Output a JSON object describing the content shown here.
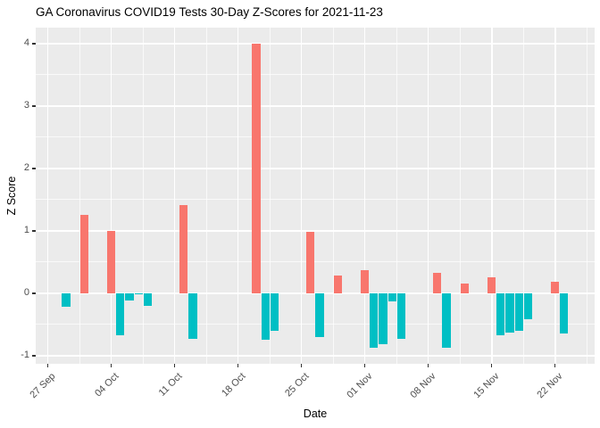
{
  "title": "GA Coronavirus COVID19 Tests 30-Day Z-Scores for 2021-11-23",
  "chart_data": {
    "type": "bar",
    "title": "GA Coronavirus COVID19 Tests 30-Day Z-Scores for 2021-11-23",
    "xlabel": "Date",
    "ylabel": "Z Score",
    "start_date": "2021-09-27",
    "ylim": [
      -1.13,
      4.26
    ],
    "y_ticks": [
      -1,
      0,
      1,
      2,
      3,
      4
    ],
    "y_tick_labels": [
      "-1",
      "0",
      "1",
      "2",
      "3",
      "4"
    ],
    "x_tick_days": [
      0,
      7,
      14,
      21,
      28,
      35,
      42,
      49,
      56
    ],
    "x_tick_labels": [
      "27 Sep",
      "04 Oct",
      "11 Oct",
      "18 Oct",
      "25 Oct",
      "01 Nov",
      "08 Nov",
      "15 Nov",
      "22 Nov"
    ],
    "grid": "on",
    "legend": "none",
    "points": [
      {
        "date": "2021-09-29",
        "z": -0.22
      },
      {
        "date": "2021-10-01",
        "z": 1.26
      },
      {
        "date": "2021-10-04",
        "z": 1.0
      },
      {
        "date": "2021-10-05",
        "z": -0.68
      },
      {
        "date": "2021-10-06",
        "z": -0.12
      },
      {
        "date": "2021-10-07",
        "z": -0.02
      },
      {
        "date": "2021-10-08",
        "z": -0.21
      },
      {
        "date": "2021-10-12",
        "z": 1.41
      },
      {
        "date": "2021-10-13",
        "z": -0.73
      },
      {
        "date": "2021-10-20",
        "z": 4.0
      },
      {
        "date": "2021-10-21",
        "z": -0.75
      },
      {
        "date": "2021-10-22",
        "z": -0.61
      },
      {
        "date": "2021-10-26",
        "z": 0.98
      },
      {
        "date": "2021-10-27",
        "z": -0.71
      },
      {
        "date": "2021-10-29",
        "z": 0.28
      },
      {
        "date": "2021-11-01",
        "z": 0.37
      },
      {
        "date": "2021-11-02",
        "z": -0.87
      },
      {
        "date": "2021-11-03",
        "z": -0.82
      },
      {
        "date": "2021-11-04",
        "z": -0.13
      },
      {
        "date": "2021-11-05",
        "z": -0.73
      },
      {
        "date": "2021-11-09",
        "z": 0.32
      },
      {
        "date": "2021-11-10",
        "z": -0.88
      },
      {
        "date": "2021-11-12",
        "z": 0.15
      },
      {
        "date": "2021-11-15",
        "z": 0.25
      },
      {
        "date": "2021-11-16",
        "z": -0.68
      },
      {
        "date": "2021-11-17",
        "z": -0.63
      },
      {
        "date": "2021-11-18",
        "z": -0.61
      },
      {
        "date": "2021-11-19",
        "z": -0.42
      },
      {
        "date": "2021-11-22",
        "z": 0.19
      },
      {
        "date": "2021-11-23",
        "z": -0.65
      }
    ],
    "colors": {
      "positive": "#F8766D",
      "negative": "#00BFC4",
      "panel_background": "#EBEBEB",
      "gridline": "#FFFFFF",
      "axis_text": "#4D4D4D",
      "tick_mark": "#333333"
    }
  }
}
